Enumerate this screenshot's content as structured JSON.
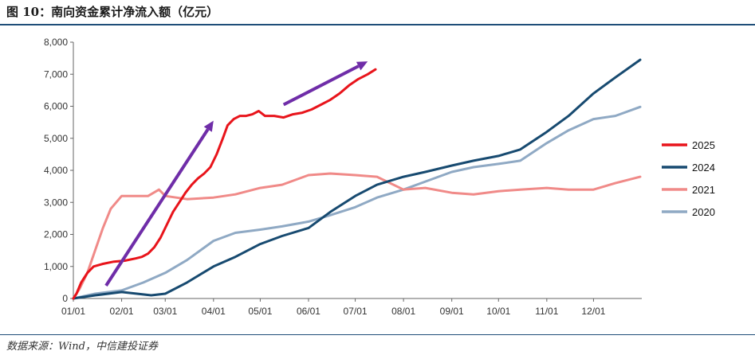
{
  "figure": {
    "title": "图 10：南向资金累计净流入额（亿元）",
    "source": "数据来源：Wind，中信建投证券"
  },
  "chart_data": {
    "type": "line",
    "title": "南向资金累计净流入额（亿元）",
    "xlabel": "",
    "ylabel": "",
    "x_unit": "date (01/01 to 12/31)",
    "x_ticks": [
      "01/01",
      "02/01",
      "03/01",
      "04/01",
      "05/01",
      "06/01",
      "07/01",
      "08/01",
      "09/01",
      "10/01",
      "11/01",
      "12/01"
    ],
    "y_ticks": [
      0,
      1000,
      2000,
      3000,
      4000,
      5000,
      6000,
      7000,
      8000
    ],
    "y_tick_labels": [
      "0",
      "1,000",
      "2,000",
      "3,000",
      "4,000",
      "5,000",
      "6,000",
      "7,000",
      "8,000"
    ],
    "ylim": [
      0,
      8000
    ],
    "grid": false,
    "legend_position": "right",
    "series": [
      {
        "name": "2025",
        "color": "#e8141b",
        "points": [
          [
            "01/01",
            0
          ],
          [
            "01/03",
            150
          ],
          [
            "01/06",
            500
          ],
          [
            "01/10",
            800
          ],
          [
            "01/14",
            1000
          ],
          [
            "01/20",
            1080
          ],
          [
            "01/27",
            1150
          ],
          [
            "02/03",
            1180
          ],
          [
            "02/10",
            1250
          ],
          [
            "02/14",
            1300
          ],
          [
            "02/18",
            1400
          ],
          [
            "02/22",
            1600
          ],
          [
            "02/26",
            1900
          ],
          [
            "03/02",
            2300
          ],
          [
            "03/06",
            2700
          ],
          [
            "03/10",
            3000
          ],
          [
            "03/14",
            3300
          ],
          [
            "03/18",
            3550
          ],
          [
            "03/22",
            3750
          ],
          [
            "03/26",
            3900
          ],
          [
            "03/30",
            4100
          ],
          [
            "04/03",
            4500
          ],
          [
            "04/07",
            5000
          ],
          [
            "04/10",
            5400
          ],
          [
            "04/14",
            5600
          ],
          [
            "04/18",
            5700
          ],
          [
            "04/22",
            5700
          ],
          [
            "04/26",
            5750
          ],
          [
            "04/30",
            5850
          ],
          [
            "05/04",
            5700
          ],
          [
            "05/10",
            5700
          ],
          [
            "05/16",
            5650
          ],
          [
            "05/22",
            5750
          ],
          [
            "05/28",
            5800
          ],
          [
            "06/03",
            5900
          ],
          [
            "06/09",
            6050
          ],
          [
            "06/15",
            6200
          ],
          [
            "06/21",
            6400
          ],
          [
            "06/27",
            6650
          ],
          [
            "07/03",
            6850
          ],
          [
            "07/09",
            7000
          ],
          [
            "07/14",
            7150
          ]
        ]
      },
      {
        "name": "2024",
        "color": "#174a70",
        "points": [
          [
            "01/01",
            0
          ],
          [
            "01/15",
            100
          ],
          [
            "02/01",
            200
          ],
          [
            "02/20",
            100
          ],
          [
            "03/01",
            150
          ],
          [
            "03/15",
            500
          ],
          [
            "04/01",
            1000
          ],
          [
            "04/15",
            1300
          ],
          [
            "05/01",
            1700
          ],
          [
            "05/15",
            1950
          ],
          [
            "06/01",
            2200
          ],
          [
            "06/15",
            2700
          ],
          [
            "07/01",
            3200
          ],
          [
            "07/15",
            3550
          ],
          [
            "08/01",
            3800
          ],
          [
            "08/15",
            3950
          ],
          [
            "09/01",
            4150
          ],
          [
            "09/15",
            4300
          ],
          [
            "10/01",
            4450
          ],
          [
            "10/15",
            4650
          ],
          [
            "11/01",
            5200
          ],
          [
            "11/15",
            5700
          ],
          [
            "12/01",
            6400
          ],
          [
            "12/15",
            6900
          ],
          [
            "12/31",
            7450
          ]
        ]
      },
      {
        "name": "2021",
        "color": "#f08a88",
        "points": [
          [
            "01/01",
            0
          ],
          [
            "01/05",
            300
          ],
          [
            "01/10",
            800
          ],
          [
            "01/15",
            1500
          ],
          [
            "01/20",
            2200
          ],
          [
            "01/25",
            2800
          ],
          [
            "02/01",
            3200
          ],
          [
            "02/10",
            3200
          ],
          [
            "02/18",
            3200
          ],
          [
            "02/25",
            3400
          ],
          [
            "03/01",
            3200
          ],
          [
            "03/15",
            3100
          ],
          [
            "04/01",
            3150
          ],
          [
            "04/15",
            3250
          ],
          [
            "05/01",
            3450
          ],
          [
            "05/15",
            3550
          ],
          [
            "06/01",
            3850
          ],
          [
            "06/15",
            3900
          ],
          [
            "07/01",
            3850
          ],
          [
            "07/15",
            3800
          ],
          [
            "08/01",
            3400
          ],
          [
            "08/15",
            3450
          ],
          [
            "09/01",
            3300
          ],
          [
            "09/15",
            3250
          ],
          [
            "10/01",
            3350
          ],
          [
            "10/15",
            3400
          ],
          [
            "11/01",
            3450
          ],
          [
            "11/15",
            3400
          ],
          [
            "12/01",
            3400
          ],
          [
            "12/15",
            3600
          ],
          [
            "12/31",
            3800
          ]
        ]
      },
      {
        "name": "2020",
        "color": "#8fa9c4",
        "points": [
          [
            "01/01",
            0
          ],
          [
            "01/15",
            150
          ],
          [
            "02/01",
            250
          ],
          [
            "02/15",
            500
          ],
          [
            "03/01",
            800
          ],
          [
            "03/15",
            1200
          ],
          [
            "04/01",
            1800
          ],
          [
            "04/15",
            2050
          ],
          [
            "05/01",
            2150
          ],
          [
            "05/15",
            2250
          ],
          [
            "06/01",
            2400
          ],
          [
            "06/15",
            2600
          ],
          [
            "07/01",
            2850
          ],
          [
            "07/15",
            3150
          ],
          [
            "08/01",
            3400
          ],
          [
            "08/15",
            3650
          ],
          [
            "09/01",
            3950
          ],
          [
            "09/15",
            4100
          ],
          [
            "10/01",
            4200
          ],
          [
            "10/15",
            4300
          ],
          [
            "11/01",
            4850
          ],
          [
            "11/15",
            5250
          ],
          [
            "12/01",
            5600
          ],
          [
            "12/15",
            5700
          ],
          [
            "12/31",
            5980
          ]
        ]
      }
    ],
    "arrows": [
      {
        "color": "#6f2da8",
        "from": [
          "01/22",
          400
        ],
        "to": [
          "04/01",
          5550
        ]
      },
      {
        "color": "#6f2da8",
        "from": [
          "05/16",
          6050
        ],
        "to": [
          "07/09",
          7400
        ]
      }
    ]
  }
}
